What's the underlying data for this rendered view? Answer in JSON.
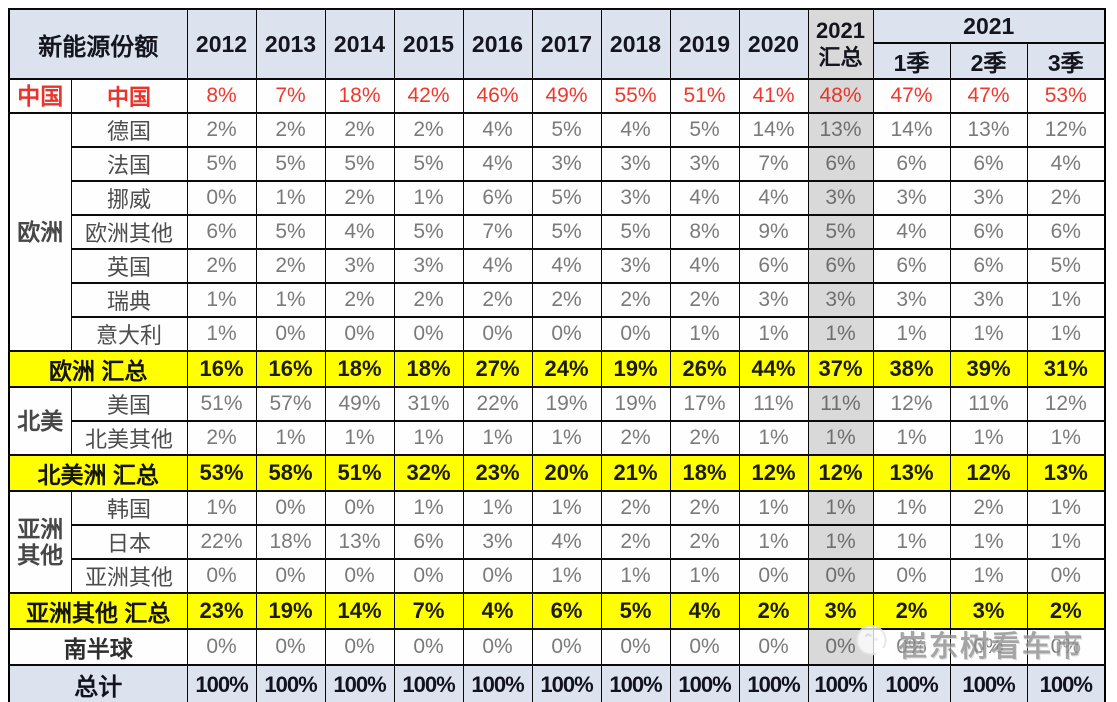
{
  "chart_data": {
    "type": "table",
    "title": "新能源份额",
    "year_columns": [
      "2012",
      "2013",
      "2014",
      "2015",
      "2016",
      "2017",
      "2018",
      "2019",
      "2020"
    ],
    "summary_column": {
      "line1": "2021",
      "line2": "汇总"
    },
    "quarter_group": {
      "label": "2021",
      "quarters": [
        "1季",
        "2季",
        "3季"
      ]
    },
    "rows": [
      {
        "kind": "china",
        "group": "中国",
        "group_span": 1,
        "label": "中国",
        "values": [
          "8%",
          "7%",
          "18%",
          "42%",
          "46%",
          "49%",
          "55%",
          "51%",
          "41%",
          "48%",
          "47%",
          "47%",
          "53%"
        ]
      },
      {
        "kind": "data",
        "group": "欧洲",
        "group_span": 7,
        "label": "德国",
        "values": [
          "2%",
          "2%",
          "2%",
          "2%",
          "4%",
          "5%",
          "4%",
          "5%",
          "14%",
          "13%",
          "14%",
          "13%",
          "12%"
        ]
      },
      {
        "kind": "data",
        "label": "法国",
        "values": [
          "5%",
          "5%",
          "5%",
          "5%",
          "4%",
          "3%",
          "3%",
          "3%",
          "7%",
          "6%",
          "6%",
          "6%",
          "4%"
        ]
      },
      {
        "kind": "data",
        "label": "挪威",
        "values": [
          "0%",
          "1%",
          "2%",
          "1%",
          "6%",
          "5%",
          "3%",
          "4%",
          "4%",
          "3%",
          "3%",
          "3%",
          "2%"
        ]
      },
      {
        "kind": "data",
        "label": "欧洲其他",
        "values": [
          "6%",
          "5%",
          "4%",
          "5%",
          "7%",
          "5%",
          "5%",
          "8%",
          "9%",
          "5%",
          "4%",
          "6%",
          "6%"
        ]
      },
      {
        "kind": "data",
        "label": "英国",
        "values": [
          "2%",
          "2%",
          "3%",
          "3%",
          "4%",
          "4%",
          "3%",
          "4%",
          "6%",
          "6%",
          "6%",
          "6%",
          "5%"
        ]
      },
      {
        "kind": "data",
        "label": "瑞典",
        "values": [
          "1%",
          "1%",
          "2%",
          "2%",
          "2%",
          "2%",
          "2%",
          "2%",
          "3%",
          "3%",
          "3%",
          "3%",
          "1%"
        ]
      },
      {
        "kind": "data",
        "label": "意大利",
        "values": [
          "1%",
          "0%",
          "0%",
          "0%",
          "0%",
          "0%",
          "0%",
          "1%",
          "1%",
          "1%",
          "1%",
          "1%",
          "1%"
        ]
      },
      {
        "kind": "summary",
        "label": "欧洲 汇总",
        "values": [
          "16%",
          "16%",
          "18%",
          "18%",
          "27%",
          "24%",
          "19%",
          "26%",
          "44%",
          "37%",
          "38%",
          "39%",
          "31%"
        ]
      },
      {
        "kind": "data",
        "group": "北美",
        "group_span": 2,
        "label": "美国",
        "values": [
          "51%",
          "57%",
          "49%",
          "31%",
          "22%",
          "19%",
          "19%",
          "17%",
          "11%",
          "11%",
          "12%",
          "11%",
          "12%"
        ]
      },
      {
        "kind": "data",
        "label": "北美其他",
        "values": [
          "2%",
          "1%",
          "1%",
          "1%",
          "1%",
          "1%",
          "2%",
          "2%",
          "1%",
          "1%",
          "1%",
          "1%",
          "1%"
        ]
      },
      {
        "kind": "summary",
        "label": "北美洲 汇总",
        "values": [
          "53%",
          "58%",
          "51%",
          "32%",
          "23%",
          "20%",
          "21%",
          "18%",
          "12%",
          "12%",
          "13%",
          "12%",
          "13%"
        ]
      },
      {
        "kind": "data",
        "group": "亚洲其他",
        "group_span": 3,
        "label": "韩国",
        "values": [
          "1%",
          "0%",
          "0%",
          "1%",
          "1%",
          "1%",
          "2%",
          "2%",
          "1%",
          "1%",
          "1%",
          "2%",
          "1%"
        ]
      },
      {
        "kind": "data",
        "label": "日本",
        "values": [
          "22%",
          "18%",
          "13%",
          "6%",
          "3%",
          "4%",
          "2%",
          "2%",
          "1%",
          "1%",
          "1%",
          "1%",
          "1%"
        ]
      },
      {
        "kind": "data",
        "label": "亚洲其他",
        "values": [
          "0%",
          "0%",
          "0%",
          "0%",
          "0%",
          "1%",
          "1%",
          "1%",
          "0%",
          "0%",
          "0%",
          "1%",
          "0%"
        ]
      },
      {
        "kind": "summary",
        "label": "亚洲其他 汇总",
        "values": [
          "23%",
          "19%",
          "14%",
          "7%",
          "4%",
          "6%",
          "5%",
          "4%",
          "2%",
          "3%",
          "2%",
          "3%",
          "2%"
        ]
      },
      {
        "kind": "plain",
        "label": "南半球",
        "values": [
          "0%",
          "0%",
          "0%",
          "0%",
          "0%",
          "0%",
          "0%",
          "0%",
          "0%",
          "0%",
          "0%",
          "0%",
          "0%"
        ]
      },
      {
        "kind": "total",
        "label": "总计",
        "values": [
          "100%",
          "100%",
          "100%",
          "100%",
          "100%",
          "100%",
          "100%",
          "100%",
          "100%",
          "100%",
          "100%",
          "100%",
          "100%"
        ]
      }
    ],
    "layout": {
      "summary_col_index": 9,
      "grid": "on"
    }
  },
  "watermark": {
    "text": "崔东树看车市",
    "icon": "magnifier-logo-icon"
  },
  "colors": {
    "header_bg": "#dce3ef",
    "summary_col_bg": "#d9d9d9",
    "highlight_row_bg": "#ffff00",
    "china_text": "#e8342a",
    "value_text": "#7a7a7a",
    "border": "#000000"
  }
}
